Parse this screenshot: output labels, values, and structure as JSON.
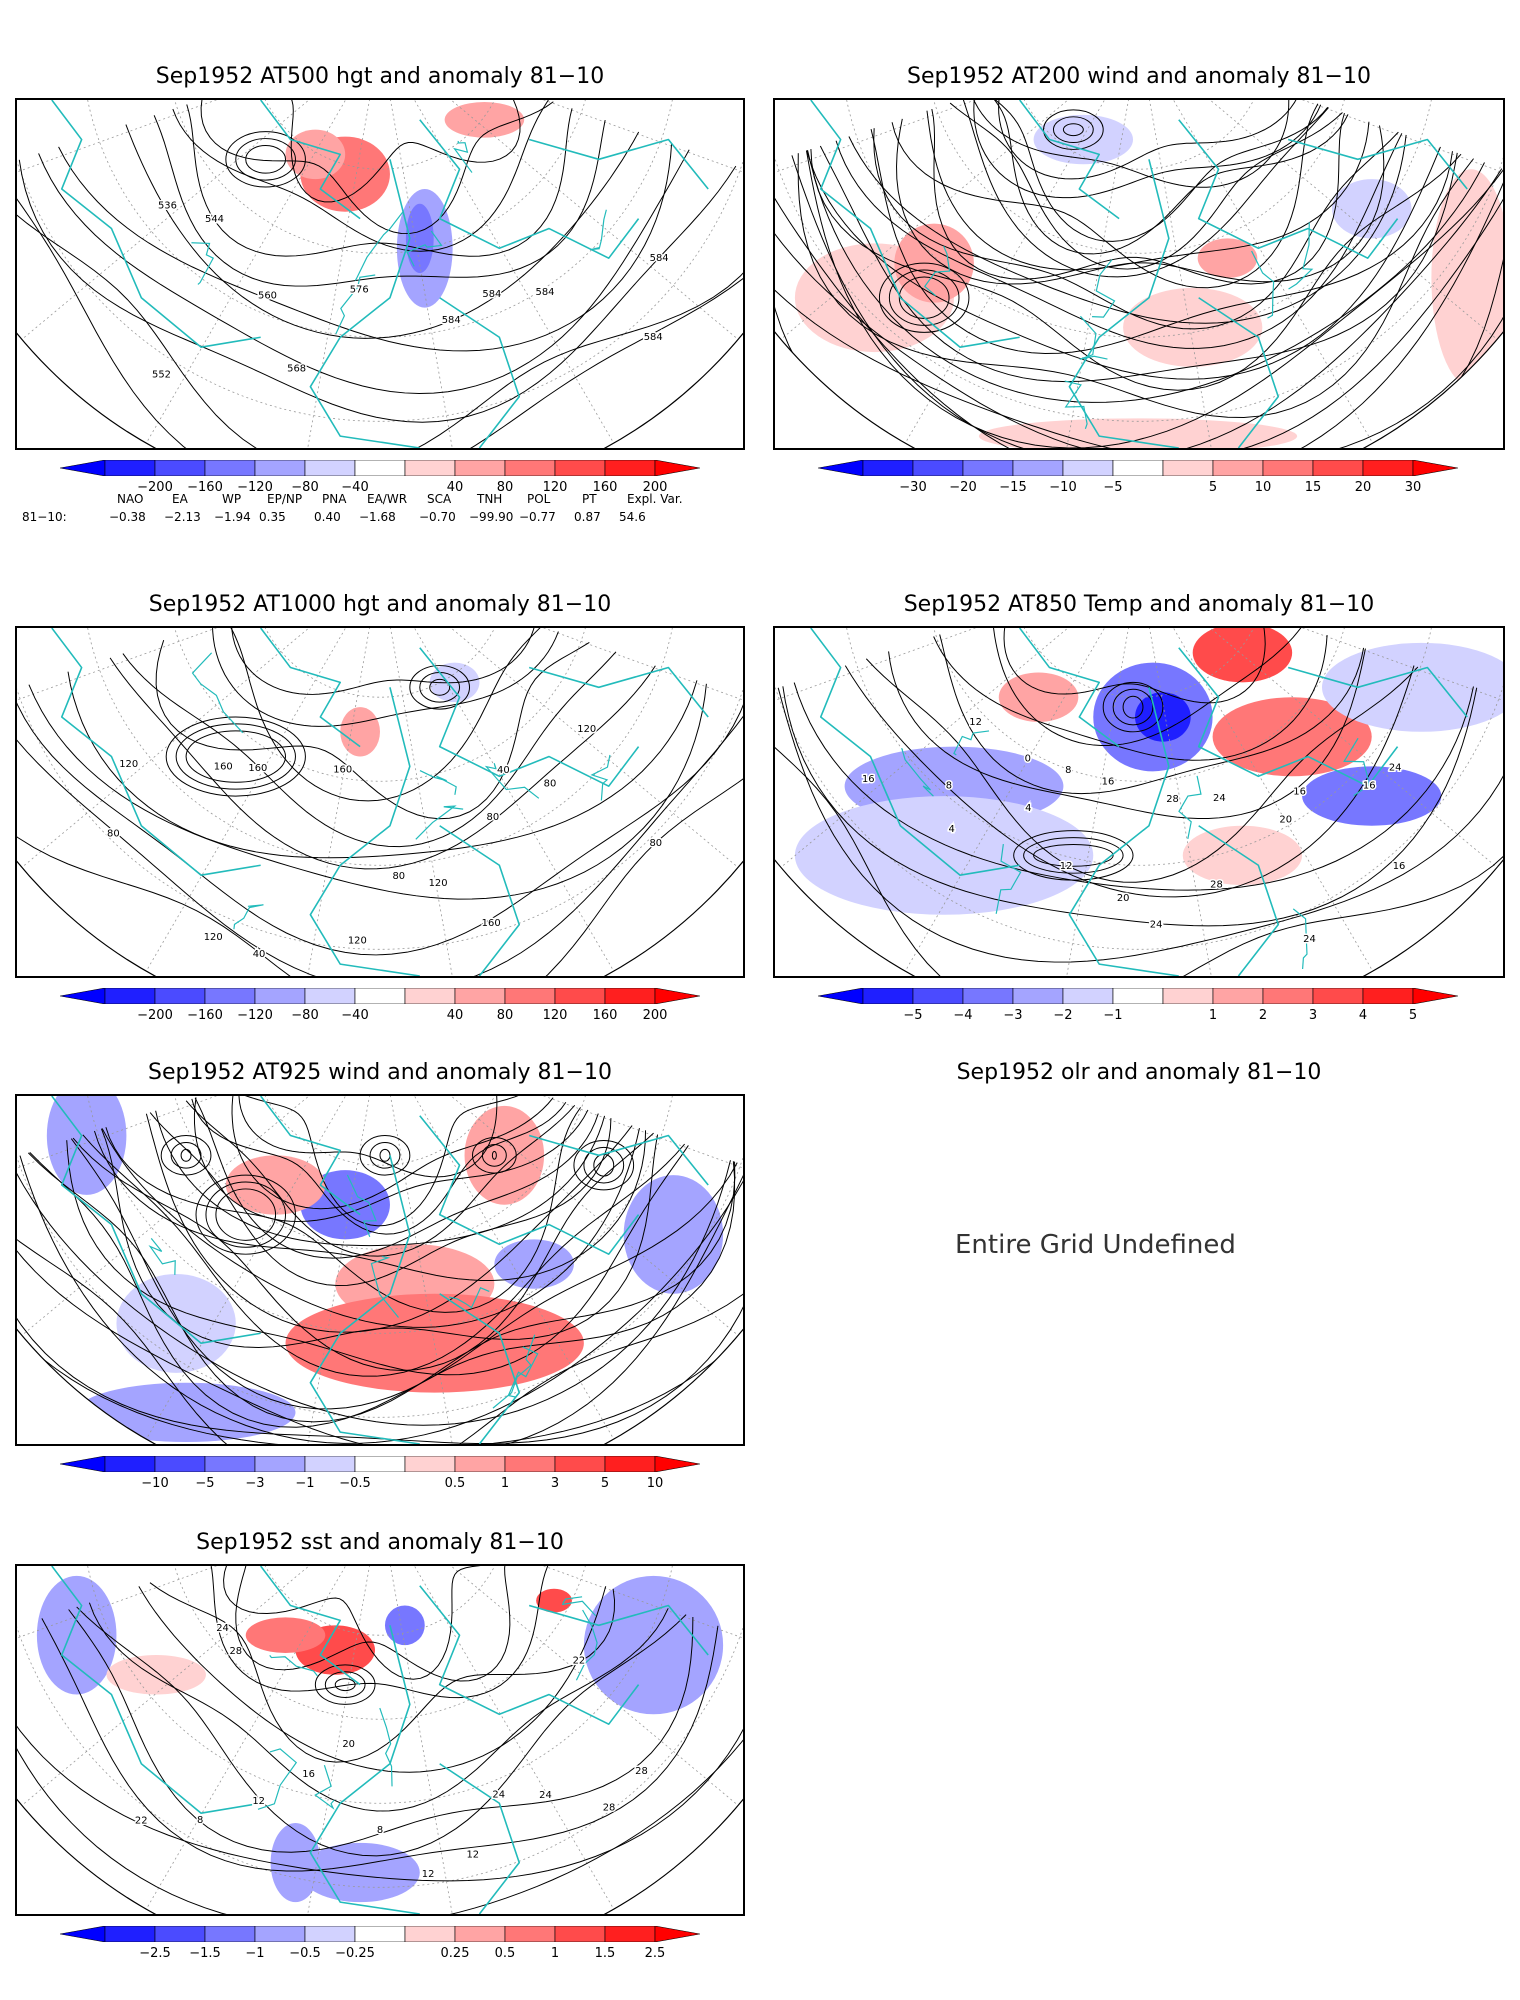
{
  "panels": [
    {
      "title": "Sep1952 AT500 hgt and anomaly 81−10",
      "contour_labels": [
        "536",
        "544",
        "552",
        "560",
        "568",
        "576",
        "584",
        "584",
        "584",
        "584",
        "584",
        "584"
      ],
      "colorbar": [
        "−200",
        "−160",
        "−120",
        "−80",
        "−40",
        "40",
        "80",
        "120",
        "160",
        "200"
      ]
    },
    {
      "title": "Sep1952 AT200 wind and anomaly 81−10",
      "colorbar": [
        "−30",
        "−20",
        "−15",
        "−10",
        "−5",
        "5",
        "10",
        "15",
        "20",
        "30"
      ]
    },
    {
      "title": "Sep1952 AT1000 hgt and anomaly 81−10",
      "contour_labels": [
        "120",
        "80",
        "160",
        "160",
        "120",
        "40",
        "160",
        "120",
        "80",
        "120",
        "160",
        "80",
        "40",
        "80",
        "80",
        "120"
      ],
      "colorbar": [
        "−200",
        "−160",
        "−120",
        "−80",
        "−40",
        "40",
        "80",
        "120",
        "160",
        "200"
      ]
    },
    {
      "title": "Sep1952 AT850 Temp and anomaly 81−10",
      "contour_labels": [
        "16",
        "12",
        "8",
        "4",
        "0",
        "4",
        "8",
        "12",
        "16",
        "20",
        "24",
        "28",
        "28",
        "24",
        "24",
        "20",
        "16",
        "16",
        "16",
        "24"
      ],
      "colorbar": [
        "−5",
        "−4",
        "−3",
        "−2",
        "−1",
        "1",
        "2",
        "3",
        "4",
        "5"
      ]
    },
    {
      "title": "Sep1952 AT925 wind and anomaly 81−10",
      "colorbar": [
        "−10",
        "−5",
        "−3",
        "−1",
        "−0.5",
        "0.5",
        "1",
        "3",
        "5",
        "10"
      ]
    },
    {
      "title": "Sep1952 olr and anomaly 81−10",
      "message": "Entire Grid Undefined"
    },
    {
      "title": "Sep1952 sst and anomaly 81−10",
      "contour_labels": [
        "24",
        "28",
        "22",
        "8",
        "12",
        "16",
        "20",
        "8",
        "12",
        "12",
        "24",
        "24",
        "28",
        "28",
        "22"
      ],
      "colorbar": [
        "−2.5",
        "−1.5",
        "−1",
        "−0.5",
        "−0.25",
        "0.25",
        "0.5",
        "1",
        "1.5",
        "2.5"
      ]
    }
  ],
  "teleconnections": {
    "headers": [
      "NAO",
      "EA",
      "WP",
      "EP/NP",
      "PNA",
      "EA/WR",
      "SCA",
      "TNH",
      "POL",
      "PT",
      "Expl. Var."
    ],
    "row_label": "81−10:",
    "values": [
      "−0.38",
      "−2.13",
      "−1.94",
      "0.35",
      "0.40",
      "−1.68",
      "−0.70",
      "−99.90",
      "−0.77",
      "0.87",
      "54.6"
    ]
  },
  "colors": {
    "coast": "#22bbbb",
    "contour": "#000000",
    "blue_scale": [
      "#1f1fff",
      "#4b4bff",
      "#7777ff",
      "#a4a4ff",
      "#d2d2ff"
    ],
    "red_scale": [
      "#ffd2d2",
      "#ffa4a4",
      "#ff7777",
      "#ff4b4b",
      "#ff1f1f"
    ]
  }
}
